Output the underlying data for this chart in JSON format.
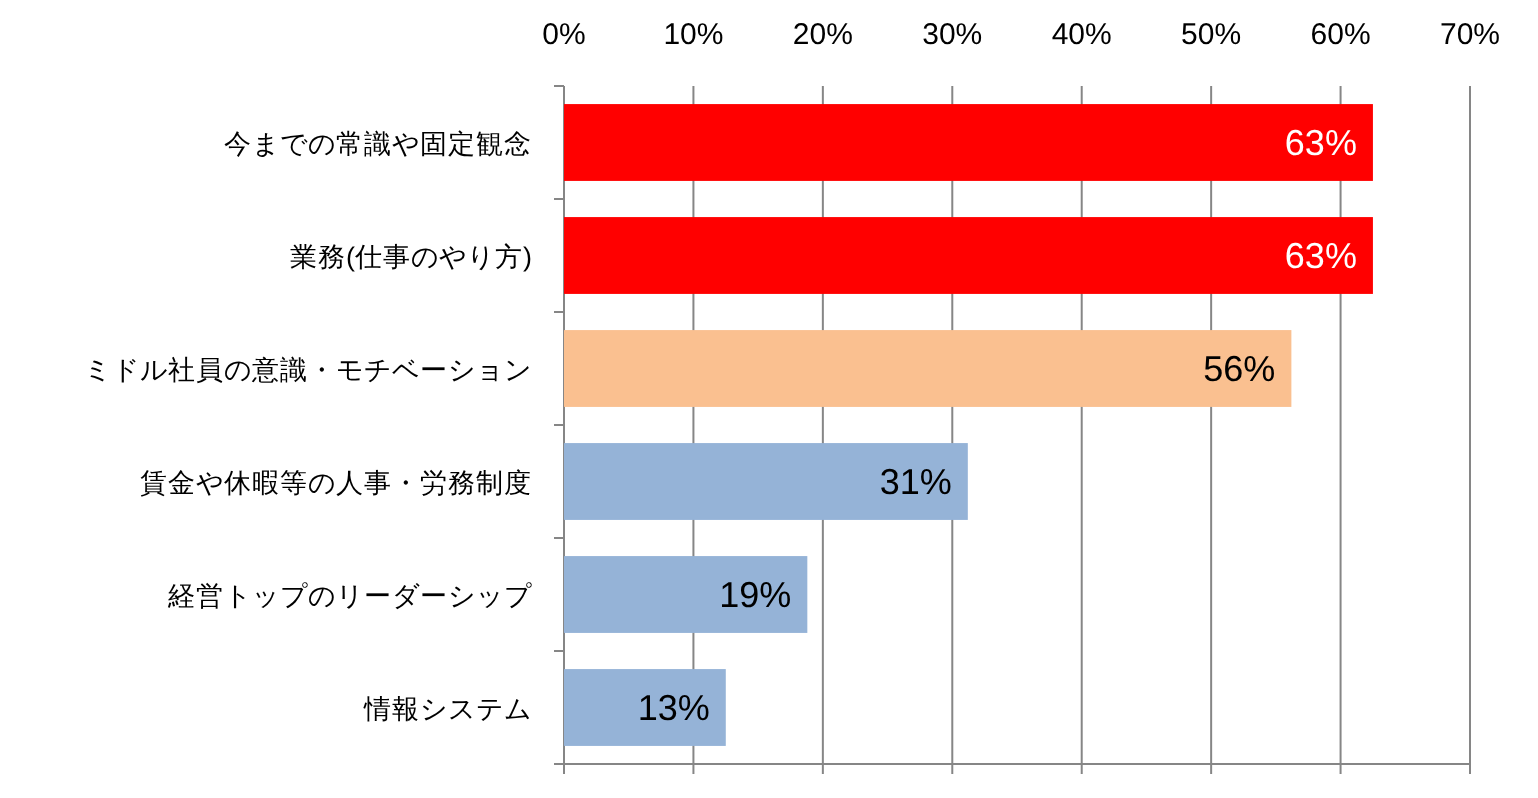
{
  "chart_data": {
    "type": "bar",
    "orientation": "horizontal",
    "categories": [
      "今までの常識や固定観念",
      "業務(仕事のやり方)",
      "ミドル社員の意識・モチベーション",
      "賃金や休暇等の人事・労務制度",
      "経営トップのリーダーシップ",
      "情報システム"
    ],
    "values": [
      62.5,
      62.5,
      56.2,
      31.2,
      18.8,
      12.5
    ],
    "value_labels": [
      "63%",
      "63%",
      "56%",
      "31%",
      "19%",
      "13%"
    ],
    "colors": [
      "#ff0000",
      "#ff0000",
      "#fac090",
      "#95b3d7",
      "#95b3d7",
      "#95b3d7"
    ],
    "xlim": [
      0,
      70
    ],
    "xticks": [
      {
        "value": 0,
        "label": "0%"
      },
      {
        "value": 10,
        "label": "10%"
      },
      {
        "value": 20,
        "label": "20%"
      },
      {
        "value": 30,
        "label": "30%"
      },
      {
        "value": 40,
        "label": "40%"
      },
      {
        "value": 50,
        "label": "50%"
      },
      {
        "value": 60,
        "label": "60%"
      },
      {
        "value": 70,
        "label": "70%"
      }
    ],
    "grid": "x"
  }
}
